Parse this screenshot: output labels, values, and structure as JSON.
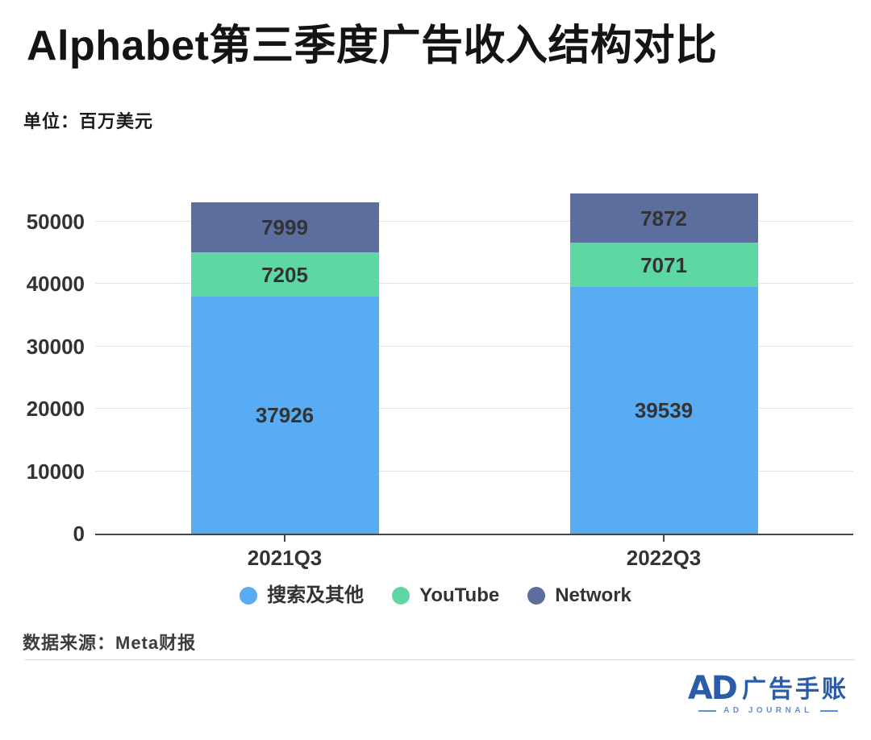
{
  "header": {
    "title": "Alphabet第三季度广告收入结构对比",
    "unit": "单位：百万美元"
  },
  "chart_data": {
    "type": "bar",
    "stacked": true,
    "title": "Alphabet第三季度广告收入结构对比",
    "unit_note": "单位：百万美元",
    "categories": [
      "2021Q3",
      "2022Q3"
    ],
    "series": [
      {
        "name": "搜索及其他",
        "color": "#58acf3",
        "values": [
          37926,
          39539
        ]
      },
      {
        "name": "YouTube",
        "color": "#5dd7a3",
        "values": [
          7205,
          7071
        ]
      },
      {
        "name": "Network",
        "color": "#5b6e9d",
        "values": [
          7999,
          7872
        ]
      }
    ],
    "totals": [
      53130,
      54482
    ],
    "yticks": [
      0,
      10000,
      20000,
      30000,
      40000,
      50000
    ],
    "ylim": [
      0,
      55000
    ],
    "grid": true,
    "value_labels": true,
    "legend_position": "bottom"
  },
  "footer": {
    "source": "数据来源：Meta财报"
  },
  "logo": {
    "mark": "AD",
    "name": "广告手账",
    "subtitle": "AD JOURNAL"
  },
  "colors": {
    "search_blue": "#58acf3",
    "youtube_green": "#5dd7a3",
    "network_slate": "#5b6e9d",
    "axis": "#454545",
    "gridline": "#e4e4e4",
    "text": "#333333",
    "logo_blue": "#2a5caa",
    "logo_light_blue": "#5e8fd6"
  }
}
